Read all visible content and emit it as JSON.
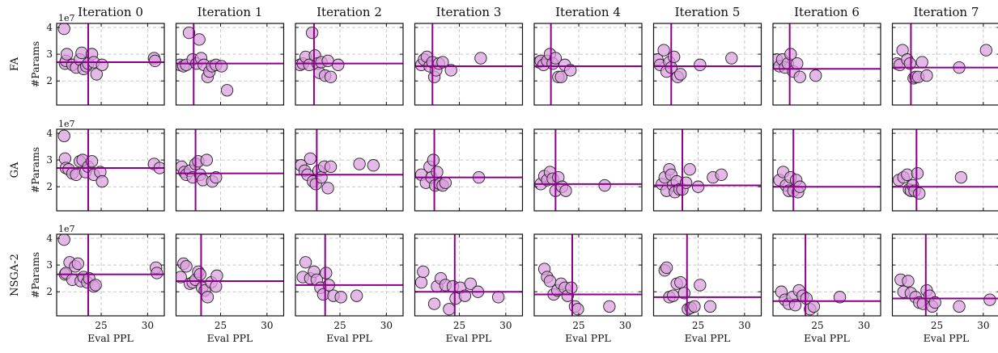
{
  "figure": {
    "columns": [
      "Iteration 0",
      "Iteration 1",
      "Iteration 2",
      "Iteration 3",
      "Iteration 4",
      "Iteration 5",
      "Iteration 6",
      "Iteration 7"
    ],
    "rows": [
      "FA",
      "GA",
      "NSGA-2"
    ],
    "xlabel": "Eval PPL",
    "ylabel": "#Params",
    "y_exponent": "1e7",
    "colors": {
      "marker_fill": "#da9ede",
      "marker_edge": "#222222",
      "ref_line": "#8b008b",
      "grid": "#c8c8c8"
    }
  },
  "chart_data": {
    "type": "scatter",
    "xlim": [
      20.2,
      31.8
    ],
    "ylim": [
      1.1,
      4.15
    ],
    "xticks": [
      25,
      30
    ],
    "yticks": [
      2,
      3,
      4
    ],
    "ytick_labels": [
      "2",
      "3",
      "4"
    ],
    "grid": true,
    "panels": [
      {
        "row": "FA",
        "col": "Iteration 0",
        "vline": 23.6,
        "hline": 2.7,
        "x": [
          21.0,
          21.1,
          21.2,
          21.3,
          21.9,
          22.3,
          22.7,
          22.9,
          23.1,
          23.4,
          23.6,
          24.0,
          24.2,
          24.5,
          25.1,
          30.7,
          30.8
        ],
        "y": [
          3.95,
          2.65,
          2.75,
          3.0,
          2.6,
          2.5,
          2.8,
          3.05,
          2.45,
          2.55,
          2.65,
          3.0,
          2.7,
          2.25,
          2.6,
          2.85,
          2.75
        ]
      },
      {
        "row": "FA",
        "col": "Iteration 1",
        "vline": 22.1,
        "hline": 2.65,
        "x": [
          20.6,
          21.0,
          21.3,
          21.6,
          22.0,
          22.4,
          22.7,
          22.9,
          23.2,
          23.6,
          23.8,
          24.1,
          24.5,
          25.1,
          25.7
        ],
        "y": [
          2.6,
          2.55,
          2.6,
          3.8,
          2.8,
          2.65,
          3.55,
          2.85,
          2.6,
          2.15,
          2.35,
          2.55,
          2.6,
          2.55,
          1.65
        ]
      },
      {
        "row": "FA",
        "col": "Iteration 2",
        "vline": 22.2,
        "hline": 2.65,
        "x": [
          20.7,
          21.0,
          21.3,
          21.7,
          22.0,
          22.3,
          22.6,
          22.8,
          23.0,
          23.4,
          23.7,
          24.0,
          24.8
        ],
        "y": [
          2.6,
          2.65,
          2.9,
          2.6,
          3.8,
          2.95,
          2.65,
          2.3,
          2.7,
          2.2,
          2.75,
          2.15,
          2.6
        ]
      },
      {
        "row": "FA",
        "col": "Iteration 3",
        "vline": 22.1,
        "hline": 2.55,
        "x": [
          20.9,
          21.2,
          21.5,
          21.8,
          22.1,
          22.3,
          22.5,
          22.8,
          23.2,
          24.1,
          27.3
        ],
        "y": [
          2.6,
          2.8,
          2.9,
          2.55,
          2.7,
          2.15,
          2.4,
          2.65,
          2.7,
          2.4,
          2.85
        ]
      },
      {
        "row": "FA",
        "col": "Iteration 4",
        "vline": 22.0,
        "hline": 2.55,
        "x": [
          20.7,
          20.9,
          21.2,
          21.6,
          21.9,
          22.2,
          22.5,
          22.8,
          23.1,
          23.5,
          24.1
        ],
        "y": [
          2.7,
          2.75,
          2.6,
          2.75,
          3.0,
          2.65,
          2.85,
          2.15,
          2.15,
          2.6,
          2.4
        ]
      },
      {
        "row": "FA",
        "col": "Iteration 5",
        "vline": 22.1,
        "hline": 2.55,
        "x": [
          20.6,
          20.9,
          21.3,
          21.6,
          21.9,
          22.1,
          22.4,
          22.8,
          23.1,
          25.2,
          28.6
        ],
        "y": [
          2.8,
          2.6,
          3.15,
          2.35,
          2.7,
          2.5,
          2.9,
          2.15,
          2.25,
          2.6,
          2.85
        ]
      },
      {
        "row": "FA",
        "col": "Iteration 6",
        "vline": 22.0,
        "hline": 2.45,
        "x": [
          20.6,
          20.9,
          21.2,
          21.5,
          21.8,
          22.1,
          22.4,
          22.8,
          23.1,
          24.8
        ],
        "y": [
          2.8,
          2.55,
          2.8,
          2.5,
          2.65,
          3.0,
          2.35,
          2.65,
          2.15,
          2.2
        ]
      },
      {
        "row": "FA",
        "col": "Iteration 7",
        "vline": 22.2,
        "hline": 2.5,
        "x": [
          20.7,
          21.0,
          21.3,
          21.8,
          22.1,
          22.5,
          22.7,
          23.0,
          23.4,
          23.9,
          27.4,
          30.3
        ],
        "y": [
          2.65,
          2.6,
          3.15,
          2.8,
          2.65,
          2.1,
          2.15,
          2.15,
          2.7,
          2.2,
          2.5,
          3.15
        ]
      },
      {
        "row": "GA",
        "col": "Iteration 0",
        "vline": 23.6,
        "hline": 2.7,
        "x": [
          21.0,
          21.1,
          21.2,
          21.5,
          21.9,
          22.3,
          22.7,
          23.0,
          23.3,
          23.6,
          24.0,
          24.2,
          24.9,
          25.1,
          30.7,
          31.3
        ],
        "y": [
          3.9,
          3.05,
          2.7,
          2.65,
          2.5,
          2.45,
          2.95,
          3.0,
          2.55,
          2.75,
          2.95,
          2.45,
          2.55,
          2.2,
          2.85,
          2.7
        ]
      },
      {
        "row": "GA",
        "col": "Iteration 1",
        "vline": 22.3,
        "hline": 2.5,
        "x": [
          20.8,
          21.1,
          21.3,
          21.7,
          22.0,
          22.3,
          22.6,
          22.8,
          23.1,
          23.5,
          24.1,
          24.5
        ],
        "y": [
          2.75,
          2.55,
          2.45,
          2.6,
          2.35,
          2.85,
          2.95,
          2.45,
          2.25,
          3.0,
          2.2,
          2.35
        ]
      },
      {
        "row": "GA",
        "col": "Iteration 2",
        "vline": 22.5,
        "hline": 2.45,
        "x": [
          20.8,
          21.2,
          21.5,
          21.8,
          22.1,
          22.4,
          22.7,
          23.0,
          23.3,
          23.7,
          24.0,
          27.1,
          28.6
        ],
        "y": [
          2.8,
          2.6,
          2.45,
          3.05,
          2.2,
          2.1,
          2.6,
          2.35,
          2.75,
          1.95,
          2.75,
          2.85,
          2.8
        ]
      },
      {
        "row": "GA",
        "col": "Iteration 3",
        "vline": 22.3,
        "hline": 2.35,
        "x": [
          20.9,
          21.4,
          21.8,
          22.0,
          22.2,
          22.4,
          22.6,
          22.9,
          23.2,
          23.5,
          27.1
        ],
        "y": [
          2.45,
          2.15,
          2.75,
          2.35,
          3.0,
          2.05,
          2.55,
          2.1,
          2.05,
          2.15,
          2.35
        ]
      },
      {
        "row": "GA",
        "col": "Iteration 4",
        "vline": 22.5,
        "hline": 2.1,
        "x": [
          20.9,
          21.3,
          21.6,
          21.9,
          22.2,
          22.5,
          22.8,
          23.2,
          23.6,
          27.8
        ],
        "y": [
          2.1,
          2.4,
          2.25,
          2.55,
          2.3,
          1.85,
          2.35,
          2.0,
          1.85,
          2.05
        ]
      },
      {
        "row": "GA",
        "col": "Iteration 5",
        "vline": 23.3,
        "hline": 2.05,
        "x": [
          21.1,
          21.4,
          21.6,
          21.9,
          22.1,
          22.3,
          22.5,
          22.7,
          23.0,
          23.3,
          23.7,
          24.1,
          25.0,
          26.6,
          27.5
        ],
        "y": [
          2.1,
          2.35,
          1.85,
          2.65,
          2.45,
          2.05,
          1.8,
          2.2,
          1.9,
          1.9,
          2.15,
          2.65,
          2.0,
          2.35,
          2.45
        ]
      },
      {
        "row": "GA",
        "col": "Iteration 6",
        "vline": 22.4,
        "hline": 2.0,
        "x": [
          20.9,
          21.3,
          21.6,
          21.9,
          22.1,
          22.4,
          22.7,
          22.9,
          23.1
        ],
        "y": [
          2.25,
          2.55,
          2.05,
          1.85,
          2.35,
          1.85,
          2.25,
          1.8,
          2.0
        ]
      },
      {
        "row": "GA",
        "col": "Iteration 7",
        "vline": 22.8,
        "hline": 2.0,
        "x": [
          20.9,
          21.4,
          21.8,
          22.0,
          22.2,
          22.4,
          22.6,
          22.9,
          23.1,
          27.6
        ],
        "y": [
          2.25,
          2.35,
          2.45,
          1.9,
          1.85,
          2.05,
          1.85,
          2.5,
          1.75,
          2.35
        ]
      },
      {
        "row": "NSGA-2",
        "col": "Iteration 0",
        "vline": 23.6,
        "hline": 2.65,
        "x": [
          21.0,
          21.1,
          21.2,
          21.6,
          21.9,
          22.2,
          22.5,
          22.8,
          23.1,
          23.5,
          23.7,
          24.2,
          24.4,
          30.9,
          31.0
        ],
        "y": [
          3.95,
          2.65,
          2.7,
          3.1,
          2.45,
          2.95,
          3.05,
          2.4,
          2.55,
          2.35,
          2.5,
          2.2,
          2.25,
          2.9,
          2.7
        ]
      },
      {
        "row": "NSGA-2",
        "col": "Iteration 1",
        "vline": 22.9,
        "hline": 2.4,
        "x": [
          20.7,
          21.0,
          21.3,
          21.7,
          22.0,
          22.3,
          22.6,
          22.8,
          23.0,
          23.3,
          23.6,
          24.0,
          24.5,
          24.6
        ],
        "y": [
          2.55,
          3.05,
          2.95,
          2.3,
          2.35,
          2.45,
          2.75,
          2.65,
          2.15,
          2.05,
          1.8,
          2.35,
          2.2,
          2.6
        ]
      },
      {
        "row": "NSGA-2",
        "col": "Iteration 2",
        "vline": 23.4,
        "hline": 2.25,
        "x": [
          21.0,
          21.3,
          21.8,
          22.2,
          22.5,
          22.9,
          23.2,
          23.5,
          23.8,
          24.3,
          25.1,
          26.8
        ],
        "y": [
          2.55,
          3.1,
          2.5,
          2.75,
          2.45,
          2.15,
          1.9,
          2.7,
          2.25,
          1.85,
          1.8,
          1.85
        ]
      },
      {
        "row": "NSGA-2",
        "col": "Iteration 3",
        "vline": 24.5,
        "hline": 2.0,
        "x": [
          20.9,
          21.1,
          22.3,
          22.6,
          23.0,
          23.5,
          23.9,
          24.3,
          24.6,
          25.1,
          25.6,
          26.2,
          27.0,
          29.2
        ],
        "y": [
          2.35,
          2.75,
          1.55,
          2.2,
          2.5,
          2.25,
          1.35,
          2.2,
          1.75,
          2.15,
          1.85,
          2.3,
          2.0,
          1.8
        ]
      },
      {
        "row": "NSGA-2",
        "col": "Iteration 4",
        "vline": 24.3,
        "hline": 1.9,
        "x": [
          21.3,
          21.6,
          21.9,
          22.3,
          22.7,
          23.1,
          23.5,
          23.8,
          24.2,
          24.6,
          24.9,
          28.3
        ],
        "y": [
          2.85,
          2.55,
          2.4,
          1.9,
          2.05,
          2.3,
          2.15,
          1.85,
          2.15,
          1.45,
          1.35,
          1.45
        ]
      },
      {
        "row": "NSGA-2",
        "col": "Iteration 5",
        "vline": 23.8,
        "hline": 1.8,
        "x": [
          21.4,
          21.6,
          21.9,
          22.3,
          22.7,
          23.1,
          23.5,
          23.9,
          24.2,
          24.6,
          25.2,
          26.3
        ],
        "y": [
          2.8,
          2.9,
          1.8,
          1.85,
          2.3,
          2.35,
          1.95,
          1.35,
          1.4,
          1.45,
          2.25,
          1.45
        ]
      },
      {
        "row": "NSGA-2",
        "col": "Iteration 6",
        "vline": 23.7,
        "hline": 1.65,
        "x": [
          21.1,
          21.5,
          21.9,
          22.3,
          22.6,
          23.0,
          23.4,
          23.8,
          24.2,
          24.6,
          27.4
        ],
        "y": [
          2.0,
          1.7,
          1.55,
          1.8,
          1.5,
          2.05,
          1.85,
          1.75,
          1.35,
          1.45,
          1.8
        ]
      },
      {
        "row": "NSGA-2",
        "col": "Iteration 7",
        "vline": 23.8,
        "hline": 1.75,
        "x": [
          21.1,
          21.4,
          21.9,
          22.2,
          22.7,
          23.1,
          23.5,
          23.9,
          24.2,
          24.5,
          24.8,
          27.4,
          30.7
        ],
        "y": [
          2.45,
          2.0,
          2.4,
          1.95,
          1.8,
          1.6,
          1.55,
          2.05,
          1.85,
          1.45,
          1.6,
          1.45,
          1.7
        ]
      }
    ]
  }
}
